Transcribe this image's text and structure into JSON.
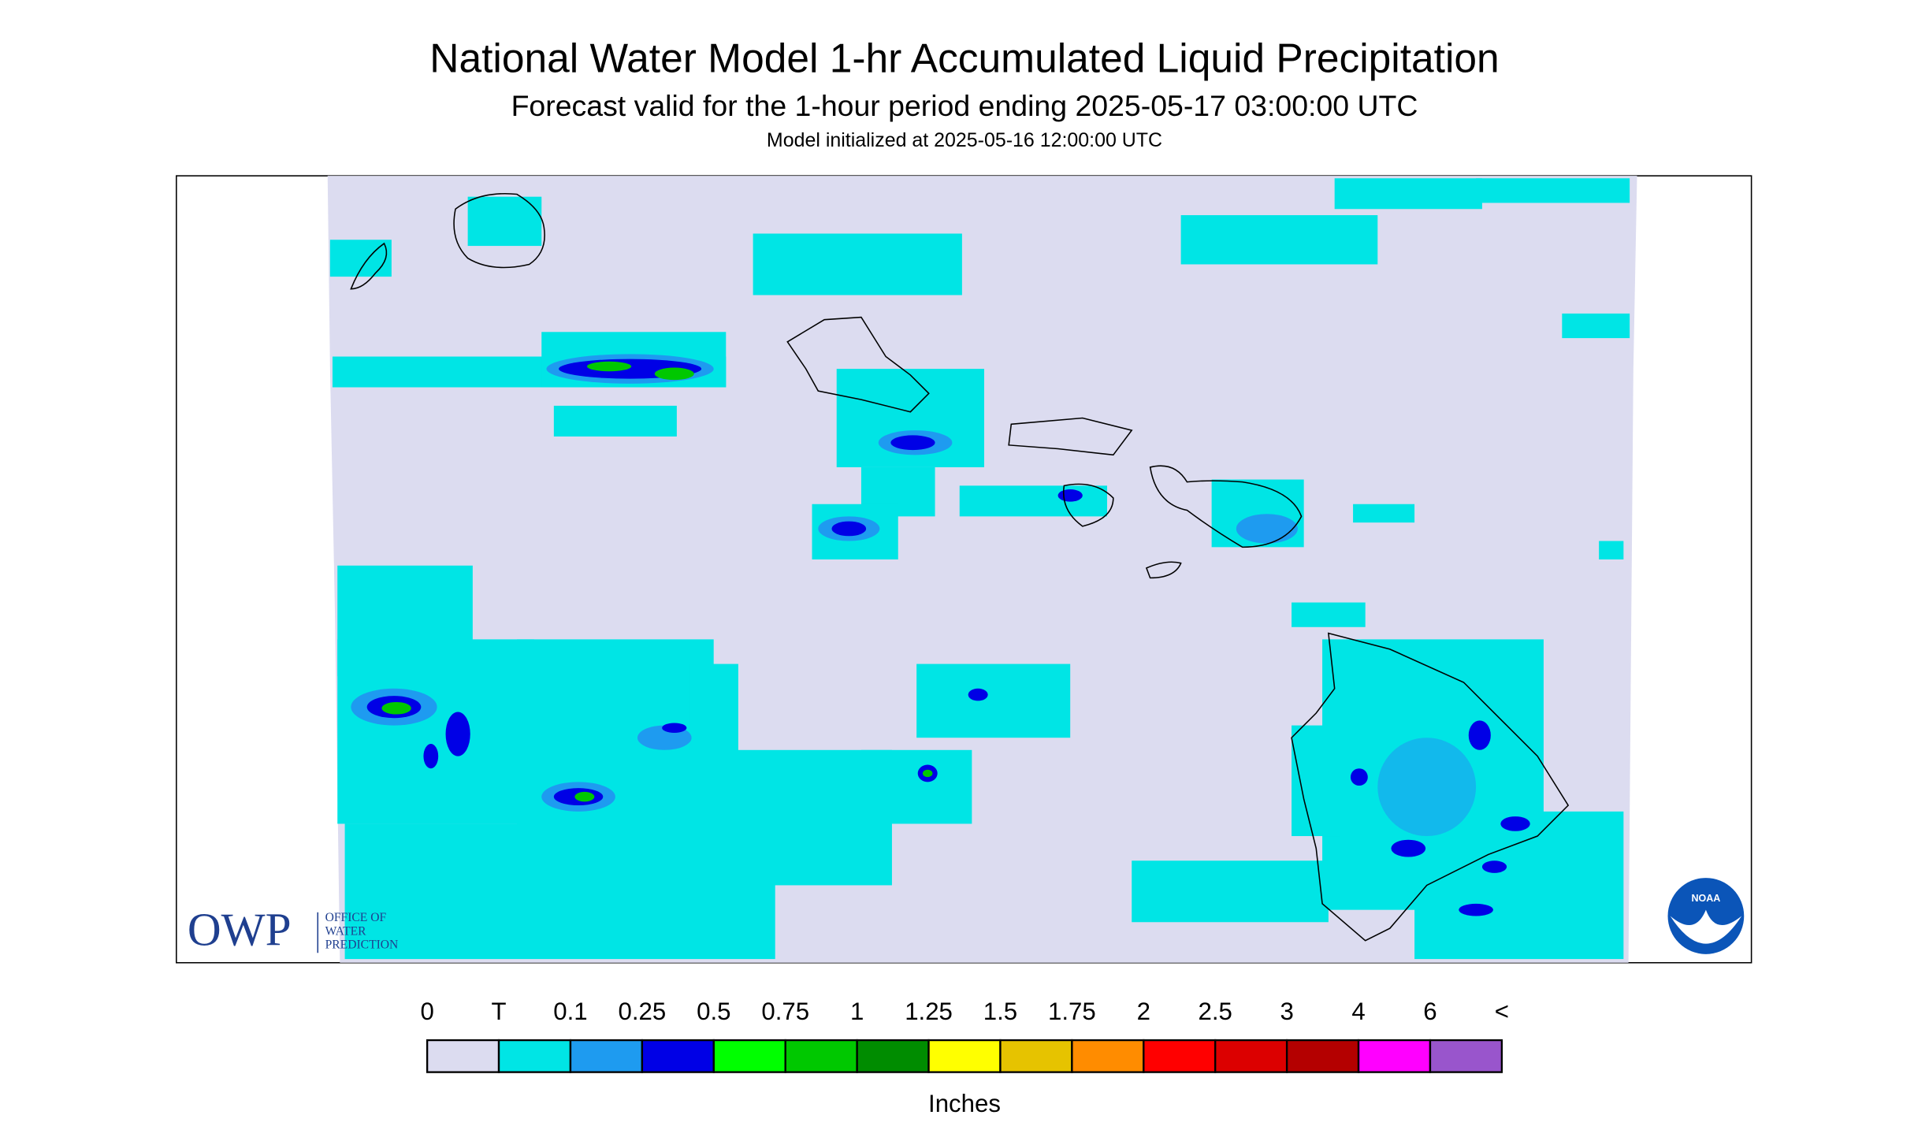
{
  "header": {
    "title": "National Water Model 1-hr Accumulated Liquid Precipitation",
    "subtitle": "Forecast valid for the 1-hour period ending 2025-05-17 03:00:00 UTC",
    "init": "Model initialized at 2025-05-16 12:00:00 UTC"
  },
  "legend": {
    "labels": [
      "0",
      "T",
      "0.1",
      "0.25",
      "0.5",
      "0.75",
      "1",
      "1.25",
      "1.5",
      "1.75",
      "2",
      "2.5",
      "3",
      "4",
      "6",
      "<"
    ],
    "colors": [
      "#dcdcf0",
      "#00e5e5",
      "#1e9bf0",
      "#0000e6",
      "#00ff00",
      "#00c800",
      "#008c00",
      "#ffff00",
      "#e6c300",
      "#ff8c00",
      "#ff0000",
      "#dc0000",
      "#b40000",
      "#ff00ff",
      "#9955cc"
    ],
    "unit": "Inches"
  },
  "logos": {
    "owp": "OWP",
    "owp_lines": [
      "OFFICE OF",
      "WATER",
      "PREDICTION"
    ],
    "noaa": "NOAA"
  }
}
